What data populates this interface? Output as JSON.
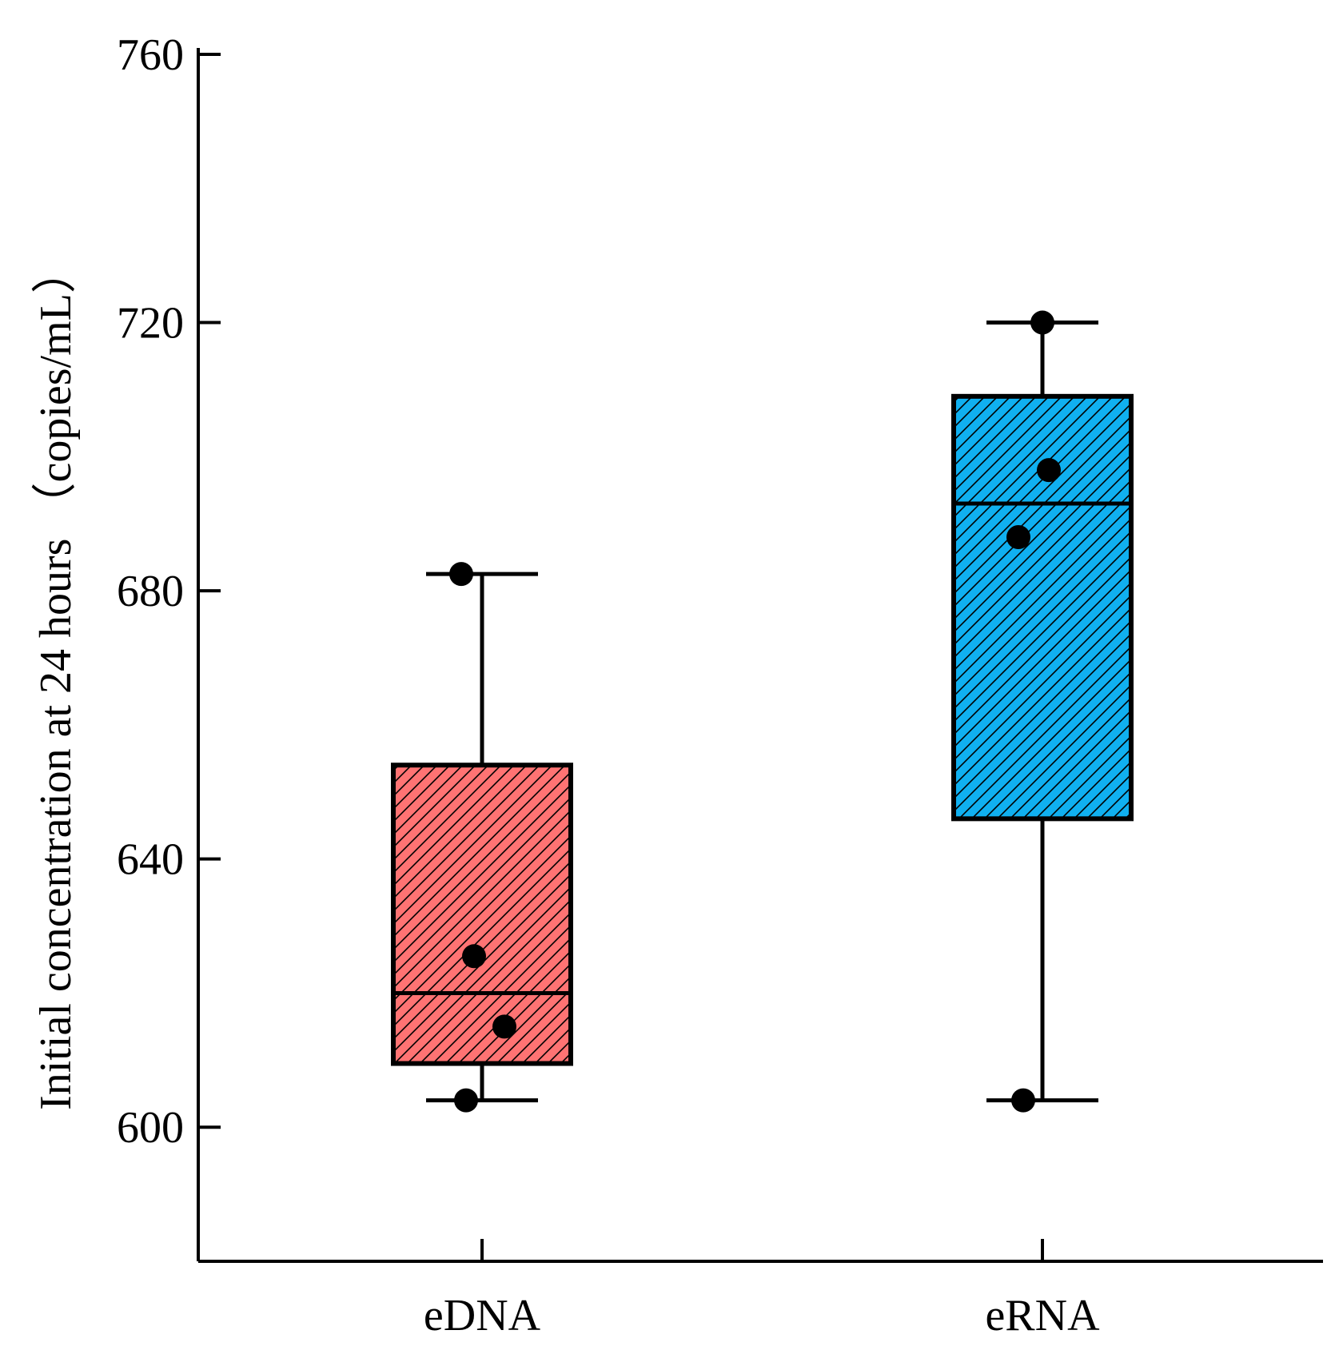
{
  "chart_data": {
    "type": "box",
    "title": "",
    "xlabel": "",
    "ylabel": "Initial concentration at 24 hours （copies/mL）",
    "ylim": [
      580,
      760
    ],
    "yticks": [
      600,
      640,
      680,
      720,
      760
    ],
    "grid": false,
    "categories": [
      "eDNA",
      "eRNA"
    ],
    "series": [
      {
        "name": "eDNA",
        "color": "#ff7373",
        "pattern": "diagonal-hatch",
        "q1": 609.5,
        "median": 620,
        "q3": 654,
        "whisker_low": 604,
        "whisker_high": 682.5,
        "points": [
          682.5,
          625.5,
          615,
          604
        ]
      },
      {
        "name": "eRNA",
        "color": "#10b0f0",
        "pattern": "diagonal-hatch",
        "q1": 646,
        "median": 693,
        "q3": 709,
        "whisker_low": 604,
        "whisker_high": 720,
        "points": [
          720,
          698,
          688,
          604
        ]
      }
    ]
  }
}
